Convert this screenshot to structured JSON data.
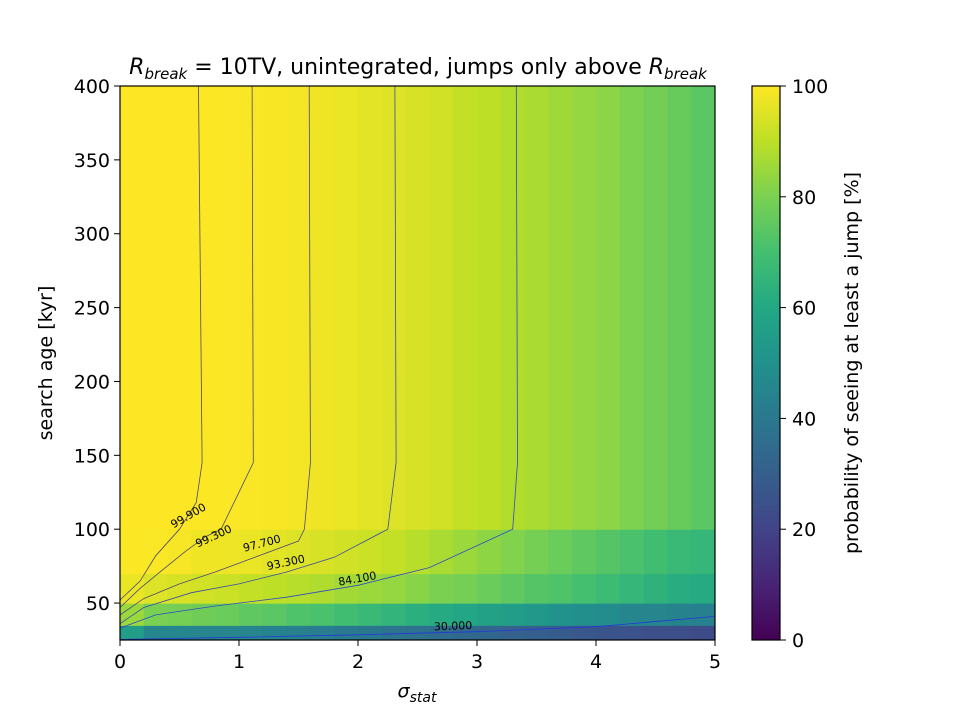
{
  "chart_data": {
    "type": "heatmap",
    "title": {
      "prefix_symbol": "R",
      "prefix_sub": "break",
      "prefix_rest": " = 10TV",
      "middle": ", unintegrated, jumps only above ",
      "suffix_symbol": "R",
      "suffix_sub": "break"
    },
    "xlabel": {
      "symbol": "σ",
      "sub": "stat"
    },
    "ylabel": "search age [kyr]",
    "colorbar_label": "probability of seeing at least a jump [%]",
    "colormap": "viridis",
    "xlim": [
      0,
      5
    ],
    "ylim": [
      25,
      400
    ],
    "clim": [
      0,
      100
    ],
    "x_ticks": [
      "0",
      "1",
      "2",
      "3",
      "4",
      "5"
    ],
    "y_ticks": [
      "50",
      "100",
      "150",
      "200",
      "250",
      "300",
      "350",
      "400"
    ],
    "colorbar_ticks": [
      "0",
      "20",
      "40",
      "60",
      "80",
      "100"
    ],
    "x_edges": [
      0,
      0.2,
      0.4,
      0.6,
      0.8,
      1.0,
      1.2,
      1.4,
      1.6,
      1.8,
      2.0,
      2.2,
      2.4,
      2.6,
      2.8,
      3.0,
      3.2,
      3.4,
      3.6,
      3.8,
      4.0,
      4.2,
      4.4,
      4.6,
      4.8,
      5.0
    ],
    "y_edges": [
      25,
      35,
      50,
      70,
      100,
      400
    ],
    "z": [
      [
        55,
        46,
        46,
        45,
        45,
        45,
        44,
        43,
        42,
        41,
        40,
        38,
        37,
        35,
        34,
        33,
        31,
        30,
        29,
        27,
        26,
        25,
        24,
        24,
        23
      ],
      [
        85,
        80,
        79,
        78,
        77,
        75,
        74,
        72,
        71,
        69,
        67,
        65,
        63,
        61,
        59,
        57,
        55,
        53,
        51,
        49,
        48,
        46,
        45,
        44,
        43
      ],
      [
        97,
        95,
        94,
        93,
        92,
        91,
        90,
        89,
        88,
        86,
        85,
        84,
        82,
        80,
        79,
        77,
        75,
        73,
        72,
        70,
        68,
        66,
        64,
        62,
        61
      ],
      [
        99.8,
        99.5,
        99,
        98,
        97.5,
        97,
        96,
        95,
        94,
        93,
        92,
        91,
        89,
        87,
        85,
        83,
        81,
        79,
        77,
        75,
        73,
        71,
        69,
        67,
        66
      ],
      [
        99.95,
        99.95,
        99.95,
        99.9,
        99.7,
        99.4,
        99.2,
        98.6,
        97.9,
        97.1,
        96,
        95,
        94,
        93,
        91,
        90,
        88.5,
        87,
        85.5,
        84,
        82.5,
        80.5,
        78.5,
        76.5,
        74
      ]
    ],
    "contour_x": [
      0,
      0.2,
      0.4,
      0.6,
      0.8,
      1.0,
      1.2,
      1.4,
      1.6,
      1.8,
      2.0,
      2.2,
      2.4,
      2.6,
      2.8,
      3.0,
      3.2,
      3.4,
      3.6,
      3.8,
      4.0,
      4.2,
      4.4,
      4.6,
      4.8,
      5.0
    ],
    "contours": [
      {
        "level": 99.9,
        "label": "99.900",
        "color": "#4a4a78",
        "points": [
          [
            0.0,
            52
          ],
          [
            0.17,
            65
          ],
          [
            0.3,
            82
          ],
          [
            0.5,
            100
          ],
          [
            0.64,
            118
          ],
          [
            0.69,
            145
          ],
          [
            0.66,
            400
          ]
        ],
        "label_at": [
          0.59,
          107
        ],
        "label_angle": -30
      },
      {
        "level": 99.3,
        "label": "99.300",
        "color": "#4a4a78",
        "points": [
          [
            0.0,
            47
          ],
          [
            0.17,
            60
          ],
          [
            0.35,
            72
          ],
          [
            0.55,
            85
          ],
          [
            0.72,
            95
          ],
          [
            0.85,
            100
          ],
          [
            1.12,
            145
          ],
          [
            1.11,
            400
          ]
        ],
        "label_at": [
          0.8,
          93
        ],
        "label_angle": -25
      },
      {
        "level": 97.7,
        "label": "97.700",
        "color": "#4a4a78",
        "points": [
          [
            0.0,
            42
          ],
          [
            0.2,
            53
          ],
          [
            0.5,
            63
          ],
          [
            0.8,
            71
          ],
          [
            1.1,
            80
          ],
          [
            1.5,
            92
          ],
          [
            1.55,
            100
          ],
          [
            1.6,
            145
          ],
          [
            1.59,
            400
          ]
        ],
        "label_at": [
          1.2,
          88
        ],
        "label_angle": -15
      },
      {
        "level": 93.3,
        "label": "93.300",
        "color": "#3a4aa8",
        "points": [
          [
            0.0,
            36
          ],
          [
            0.2,
            47
          ],
          [
            0.6,
            57
          ],
          [
            1.0,
            63
          ],
          [
            1.4,
            71
          ],
          [
            1.8,
            81
          ],
          [
            2.25,
            100
          ],
          [
            2.32,
            145
          ],
          [
            2.31,
            400
          ]
        ],
        "label_at": [
          1.4,
          75
        ],
        "label_angle": -12
      },
      {
        "level": 84.1,
        "label": "84.100",
        "color": "#2f4ac8",
        "points": [
          [
            0.0,
            33
          ],
          [
            0.3,
            42
          ],
          [
            0.8,
            48
          ],
          [
            1.4,
            54
          ],
          [
            2.0,
            62
          ],
          [
            2.6,
            74
          ],
          [
            3.3,
            100
          ],
          [
            3.34,
            145
          ],
          [
            3.33,
            400
          ]
        ],
        "label_at": [
          2.0,
          64
        ],
        "label_angle": -10
      },
      {
        "level": 30.0,
        "label": "30.000",
        "color": "#2438d8",
        "points": [
          [
            0.0,
            25.4
          ],
          [
            1.0,
            26.8
          ],
          [
            2.0,
            28.5
          ],
          [
            3.0,
            30.6
          ],
          [
            4.0,
            34.0
          ],
          [
            5.0,
            41
          ]
        ],
        "label_at": [
          2.8,
          32
        ],
        "label_angle": -2
      }
    ]
  }
}
